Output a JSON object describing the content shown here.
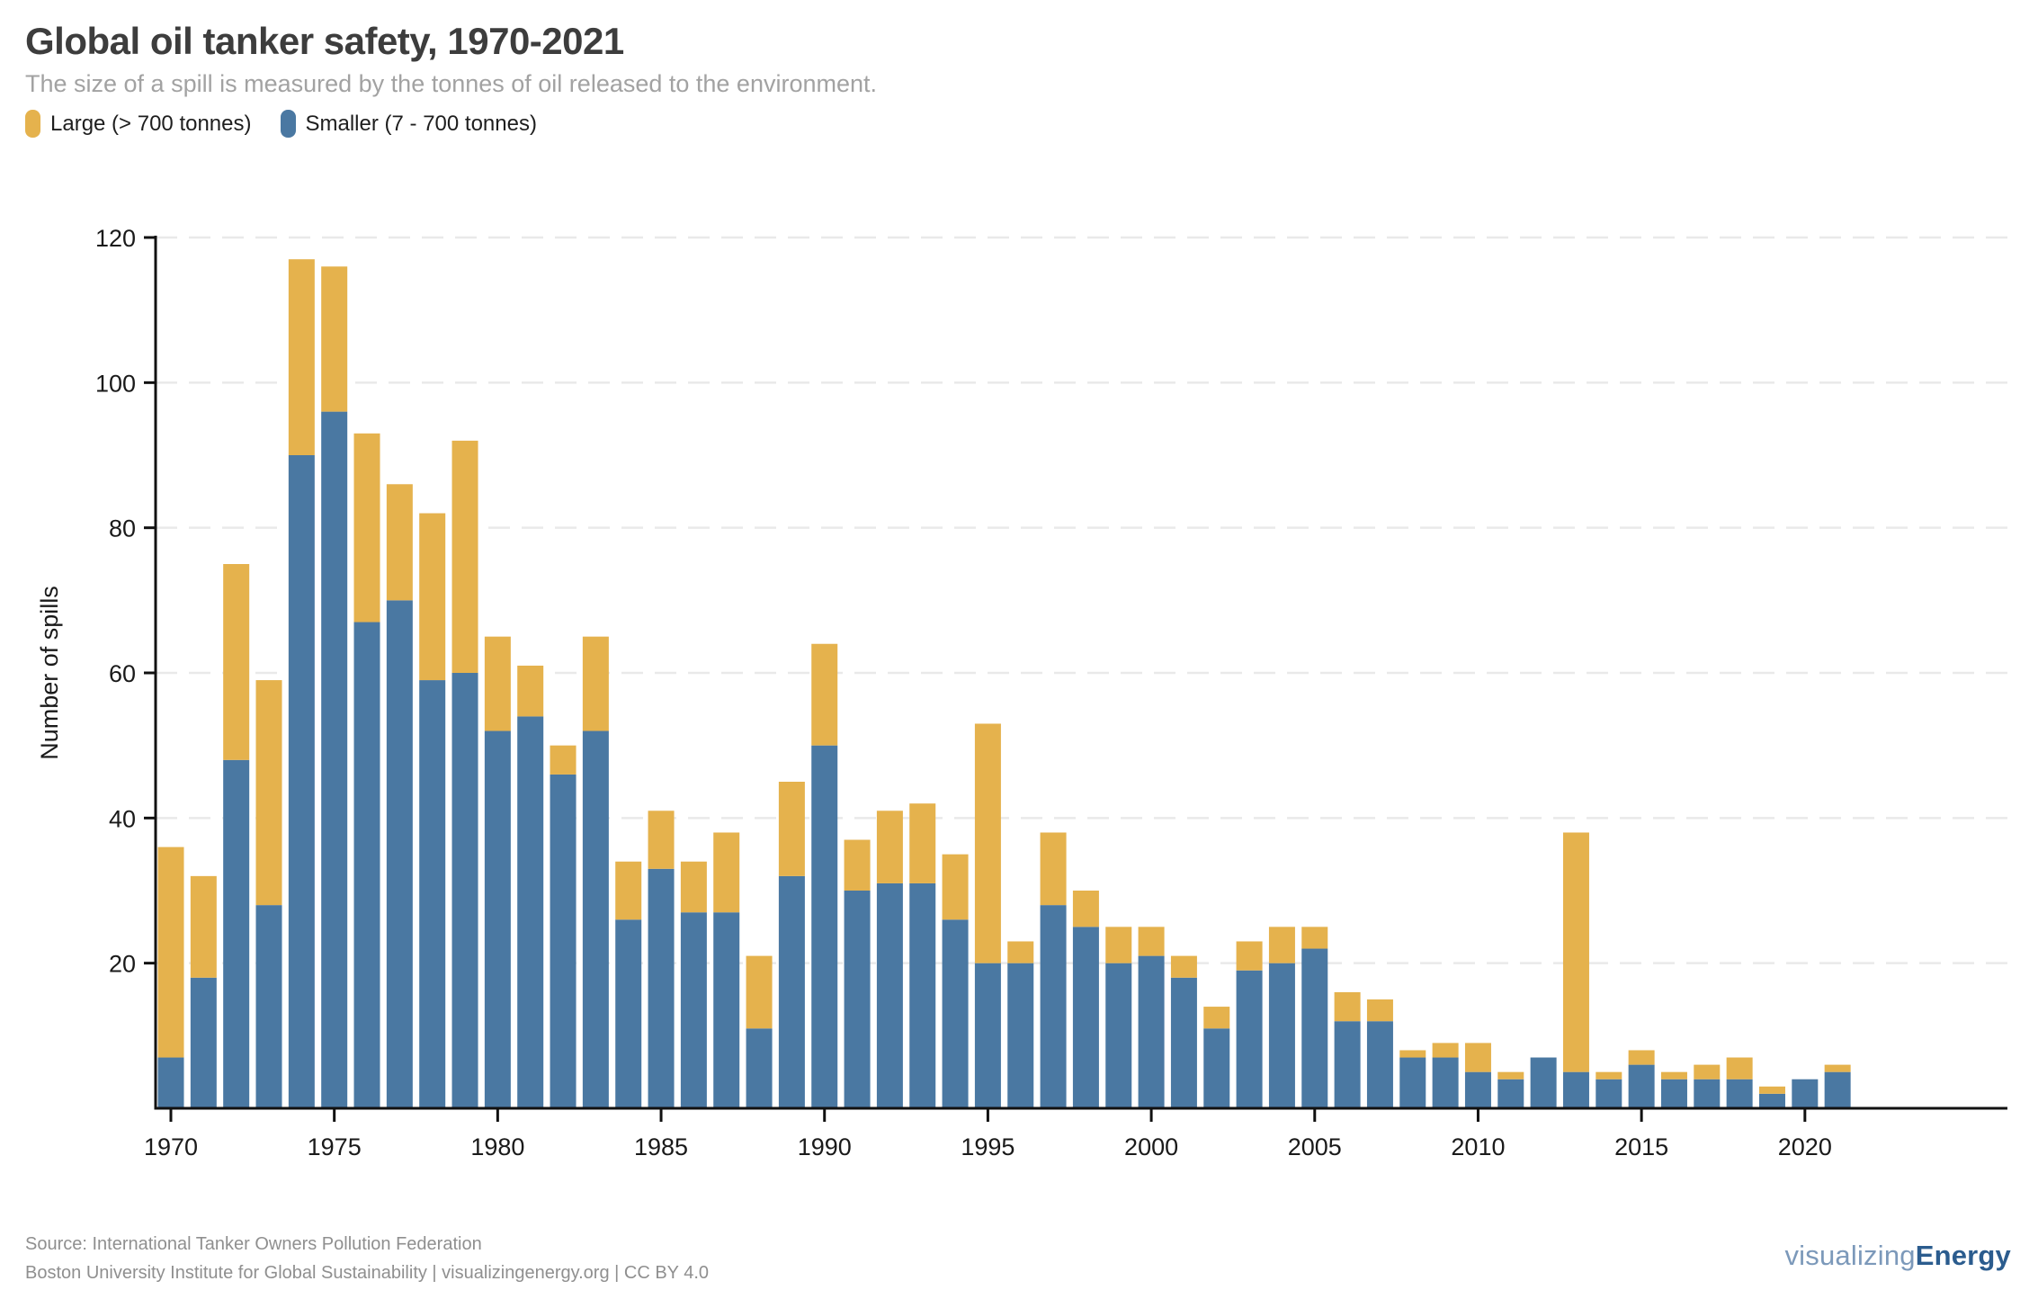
{
  "header": {
    "title": "Global oil tanker safety, 1970-2021",
    "subtitle": "The size of a spill is measured by the tonnes of oil released to the environment."
  },
  "legend": {
    "items": [
      {
        "label": "Large (> 700 tonnes)",
        "color": "#E5B24D"
      },
      {
        "label": "Smaller (7 - 700 tonnes)",
        "color": "#4A78A2"
      }
    ]
  },
  "chart_data": {
    "type": "bar",
    "stacked": true,
    "title": "Global oil tanker safety, 1970-2021",
    "xlabel": "",
    "ylabel": "Number of spills",
    "ylim": [
      0,
      120
    ],
    "yticks": [
      20,
      40,
      60,
      80,
      100,
      120
    ],
    "xticks": [
      1970,
      1975,
      1980,
      1985,
      1990,
      1995,
      2000,
      2005,
      2010,
      2015,
      2020
    ],
    "grid": "horizontal-dashed",
    "legend_position": "top-left",
    "categories": [
      1970,
      1971,
      1972,
      1973,
      1974,
      1975,
      1976,
      1977,
      1978,
      1979,
      1980,
      1981,
      1982,
      1983,
      1984,
      1985,
      1986,
      1987,
      1988,
      1989,
      1990,
      1991,
      1992,
      1993,
      1994,
      1995,
      1996,
      1997,
      1998,
      1999,
      2000,
      2001,
      2002,
      2003,
      2004,
      2005,
      2006,
      2007,
      2008,
      2009,
      2010,
      2011,
      2012,
      2013,
      2014,
      2015,
      2016,
      2017,
      2018,
      2019,
      2020,
      2021
    ],
    "series": [
      {
        "name": "Smaller (7 - 700 tonnes)",
        "color": "#4A78A2",
        "values": [
          7,
          18,
          48,
          28,
          90,
          96,
          67,
          70,
          59,
          60,
          52,
          54,
          46,
          52,
          26,
          33,
          27,
          27,
          11,
          32,
          50,
          30,
          31,
          31,
          26,
          20,
          20,
          28,
          25,
          20,
          21,
          18,
          11,
          19,
          20,
          22,
          12,
          12,
          7,
          7,
          5,
          4,
          7,
          5,
          4,
          6,
          4,
          4,
          4,
          2,
          4,
          5
        ]
      },
      {
        "name": "Large (> 700 tonnes)",
        "color": "#E5B24D",
        "values": [
          29,
          14,
          27,
          31,
          27,
          20,
          26,
          16,
          23,
          32,
          13,
          7,
          4,
          13,
          8,
          8,
          7,
          11,
          10,
          13,
          14,
          7,
          10,
          11,
          9,
          33,
          3,
          10,
          5,
          5,
          4,
          3,
          3,
          4,
          5,
          3,
          4,
          3,
          1,
          2,
          4,
          1,
          0,
          33,
          1,
          2,
          1,
          2,
          3,
          1,
          0,
          1
        ]
      }
    ]
  },
  "footer": {
    "line1": "Source: International Tanker Owners Pollution Federation",
    "line2": "Boston University Institute for Global Sustainability | visualizingenergy.org | CC BY 4.0",
    "logo_light": "visualizing",
    "logo_bold": "Energy"
  },
  "colors": {
    "large": "#E5B24D",
    "smaller": "#4A78A2",
    "axis": "#111111",
    "gridline": "#e9e9e9",
    "tick_text": "#1a1a1a"
  }
}
